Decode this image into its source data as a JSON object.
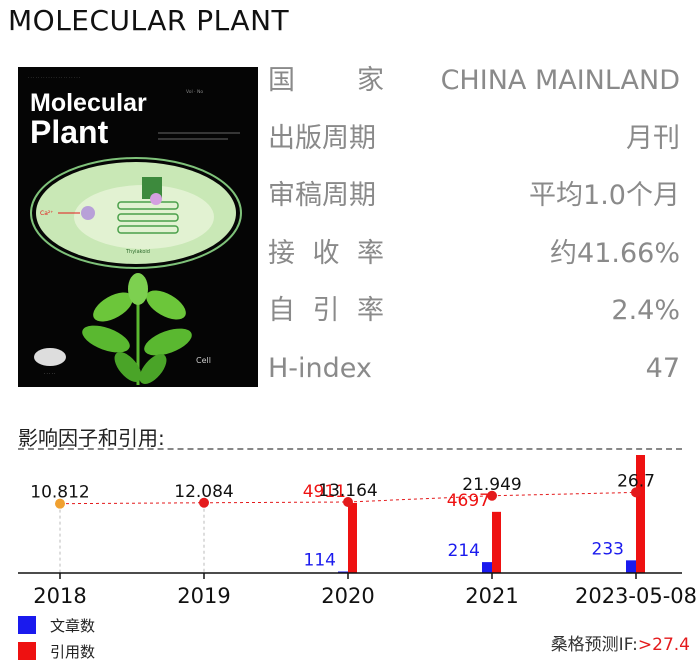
{
  "journal": {
    "title": "MOLECULAR PLANT"
  },
  "cover": {
    "masthead_line1": "Molecular",
    "masthead_line2": "Plant",
    "accent_color": "#a8d890",
    "background_color": "#050505"
  },
  "info": {
    "rows": [
      {
        "label": "国家",
        "label_chars": [
          "国",
          "家"
        ],
        "value": "CHINA MAINLAND"
      },
      {
        "label": "出版周期",
        "value": "月刊"
      },
      {
        "label": "审稿周期",
        "value": "平均1.0个月"
      },
      {
        "label": "接收率",
        "label_chars": [
          "接",
          "收",
          "率"
        ],
        "value": "约41.66%"
      },
      {
        "label": "自引率",
        "label_chars": [
          "自",
          "引",
          "率"
        ],
        "value": "2.4%"
      },
      {
        "label": "H-index",
        "value": "47"
      }
    ]
  },
  "section": {
    "title": "影响因子和引用:"
  },
  "chart_data": {
    "type": "bar",
    "categories": [
      "2018",
      "2019",
      "2020",
      "2021",
      "2023-05-08"
    ],
    "impact_factor": {
      "values": [
        10.812,
        12.084,
        13.164,
        21.949,
        26.7
      ],
      "labels": [
        "10.812",
        "12.084",
        "13.164",
        "21.949",
        "26.7"
      ],
      "point_colors": [
        "#f0a030",
        "#e41a1c",
        "#e41a1c",
        "#e41a1c",
        "#e41a1c"
      ],
      "line_color": "#e41a1c"
    },
    "series": [
      {
        "name": "文章数",
        "values": [
          null,
          null,
          114,
          214,
          233
        ],
        "color": "#1a1aee"
      },
      {
        "name": "引用数",
        "values": [
          null,
          null,
          4911,
          4697,
          6220
        ],
        "color": "#ee1111"
      }
    ],
    "legend_position": "bottom-left",
    "grid": false
  },
  "prediction": {
    "label": "桑格预测IF:",
    "value": ">27.4"
  }
}
